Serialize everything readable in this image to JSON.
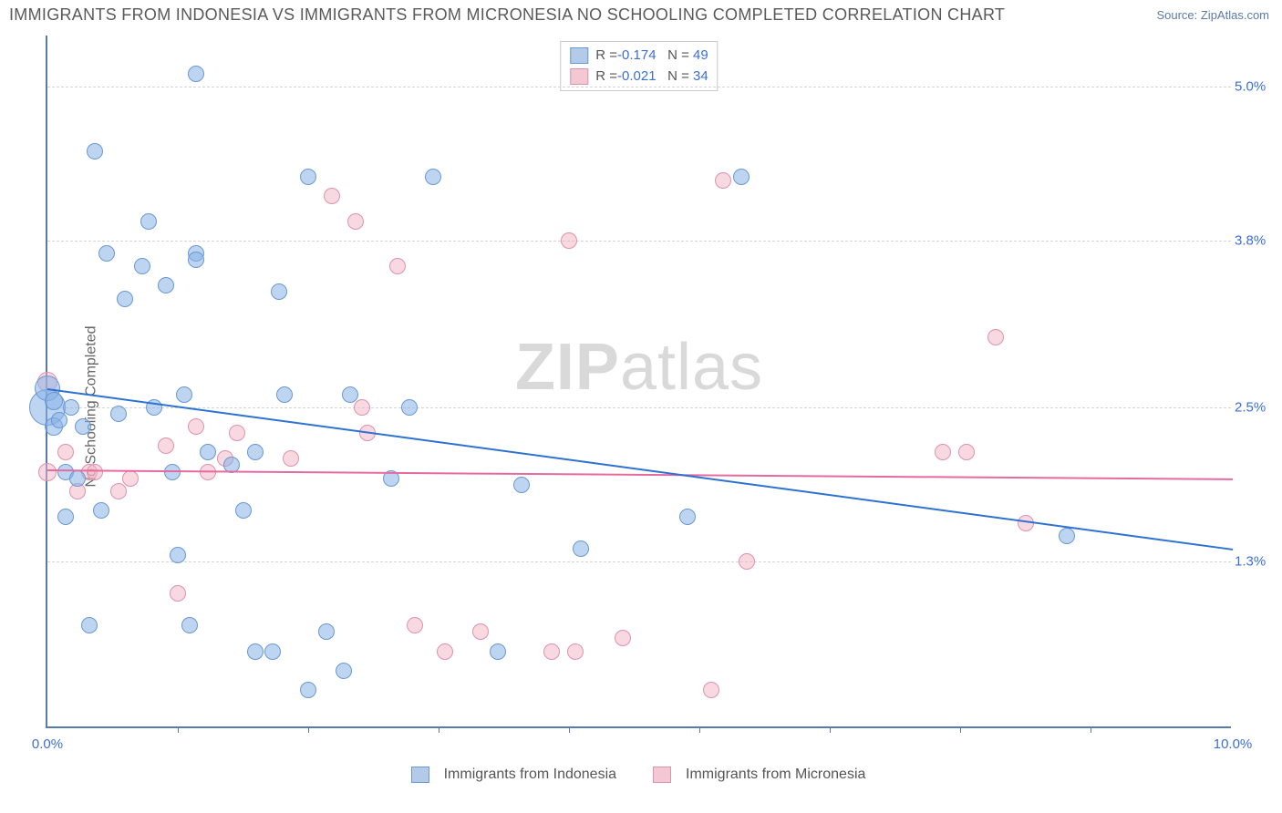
{
  "title": "IMMIGRANTS FROM INDONESIA VS IMMIGRANTS FROM MICRONESIA NO SCHOOLING COMPLETED CORRELATION CHART",
  "source": "Source: ZipAtlas.com",
  "y_axis_label": "No Schooling Completed",
  "watermark_a": "ZIP",
  "watermark_b": "atlas",
  "chart": {
    "type": "scatter",
    "xlim": [
      0,
      10
    ],
    "ylim": [
      0,
      5.4
    ],
    "x_ticks_labeled": [
      {
        "x": 0.0,
        "label": "0.0%"
      },
      {
        "x": 10.0,
        "label": "10.0%"
      }
    ],
    "x_ticks_minor": [
      1.1,
      2.2,
      3.3,
      4.4,
      5.5,
      6.6,
      7.7,
      8.8
    ],
    "y_ticks": [
      {
        "y": 1.3,
        "label": "1.3%"
      },
      {
        "y": 2.5,
        "label": "2.5%"
      },
      {
        "y": 3.8,
        "label": "3.8%"
      },
      {
        "y": 5.0,
        "label": "5.0%"
      }
    ],
    "background_color": "#ffffff",
    "axis_color": "#5a7aaa",
    "grid_color": "#d4d4d4"
  },
  "legend_top": [
    {
      "swatch_fill": "#b3cbe9",
      "swatch_border": "#6a98d2",
      "r_label": "R = ",
      "r_value": "-0.174",
      "n_label": "   N = ",
      "n_value": "49"
    },
    {
      "swatch_fill": "#f4c7d4",
      "swatch_border": "#dd93ab",
      "r_label": "R = ",
      "r_value": "-0.021",
      "n_label": "   N = ",
      "n_value": "34"
    }
  ],
  "legend_bottom": [
    {
      "swatch_fill": "#b3cbe9",
      "swatch_border": "#6a98d2",
      "label": "Immigrants from Indonesia"
    },
    {
      "swatch_fill": "#f4c7d4",
      "swatch_border": "#dd93ab",
      "label": "Immigrants from Micronesia"
    }
  ],
  "series": {
    "indonesia": {
      "color_fill": "rgba(137,178,231,0.55)",
      "color_border": "#6a98d2",
      "trend_color": "#2d72d2",
      "trend": {
        "x1": 0.0,
        "y1": 2.65,
        "x2": 10.0,
        "y2": 1.4
      },
      "points": [
        {
          "x": 0.0,
          "y": 2.5,
          "r": 20
        },
        {
          "x": 0.0,
          "y": 2.65,
          "r": 14
        },
        {
          "x": 0.05,
          "y": 2.55,
          "r": 10
        },
        {
          "x": 0.05,
          "y": 2.35,
          "r": 10
        },
        {
          "x": 0.1,
          "y": 2.4,
          "r": 9
        },
        {
          "x": 0.15,
          "y": 1.65,
          "r": 9
        },
        {
          "x": 0.15,
          "y": 2.0,
          "r": 9
        },
        {
          "x": 0.2,
          "y": 2.5,
          "r": 9
        },
        {
          "x": 0.25,
          "y": 1.95,
          "r": 9
        },
        {
          "x": 0.3,
          "y": 2.35,
          "r": 9
        },
        {
          "x": 0.35,
          "y": 0.8,
          "r": 9
        },
        {
          "x": 0.4,
          "y": 4.5,
          "r": 9
        },
        {
          "x": 0.45,
          "y": 1.7,
          "r": 9
        },
        {
          "x": 0.5,
          "y": 3.7,
          "r": 9
        },
        {
          "x": 0.6,
          "y": 2.45,
          "r": 9
        },
        {
          "x": 0.65,
          "y": 3.35,
          "r": 9
        },
        {
          "x": 0.8,
          "y": 3.6,
          "r": 9
        },
        {
          "x": 0.85,
          "y": 3.95,
          "r": 9
        },
        {
          "x": 0.9,
          "y": 2.5,
          "r": 9
        },
        {
          "x": 1.0,
          "y": 3.45,
          "r": 9
        },
        {
          "x": 1.05,
          "y": 2.0,
          "r": 9
        },
        {
          "x": 1.1,
          "y": 1.35,
          "r": 9
        },
        {
          "x": 1.15,
          "y": 2.6,
          "r": 9
        },
        {
          "x": 1.2,
          "y": 0.8,
          "r": 9
        },
        {
          "x": 1.25,
          "y": 5.1,
          "r": 9
        },
        {
          "x": 1.25,
          "y": 3.7,
          "r": 9
        },
        {
          "x": 1.25,
          "y": 3.65,
          "r": 9
        },
        {
          "x": 1.35,
          "y": 2.15,
          "r": 9
        },
        {
          "x": 1.55,
          "y": 2.05,
          "r": 9
        },
        {
          "x": 1.65,
          "y": 1.7,
          "r": 9
        },
        {
          "x": 1.75,
          "y": 2.15,
          "r": 9
        },
        {
          "x": 1.75,
          "y": 0.6,
          "r": 9
        },
        {
          "x": 1.9,
          "y": 0.6,
          "r": 9
        },
        {
          "x": 1.95,
          "y": 3.4,
          "r": 9
        },
        {
          "x": 2.0,
          "y": 2.6,
          "r": 9
        },
        {
          "x": 2.2,
          "y": 4.3,
          "r": 9
        },
        {
          "x": 2.2,
          "y": 0.3,
          "r": 9
        },
        {
          "x": 2.35,
          "y": 0.75,
          "r": 9
        },
        {
          "x": 2.5,
          "y": 0.45,
          "r": 9
        },
        {
          "x": 2.55,
          "y": 2.6,
          "r": 9
        },
        {
          "x": 2.9,
          "y": 1.95,
          "r": 9
        },
        {
          "x": 3.05,
          "y": 2.5,
          "r": 9
        },
        {
          "x": 3.25,
          "y": 4.3,
          "r": 9
        },
        {
          "x": 3.8,
          "y": 0.6,
          "r": 9
        },
        {
          "x": 4.0,
          "y": 1.9,
          "r": 9
        },
        {
          "x": 4.5,
          "y": 1.4,
          "r": 9
        },
        {
          "x": 5.4,
          "y": 1.65,
          "r": 9
        },
        {
          "x": 5.85,
          "y": 4.3,
          "r": 9
        },
        {
          "x": 8.6,
          "y": 1.5,
          "r": 9
        }
      ]
    },
    "micronesia": {
      "color_fill": "rgba(241,178,196,0.5)",
      "color_border": "#dd93ab",
      "trend_color": "#e66aa0",
      "trend": {
        "x1": 0.0,
        "y1": 2.02,
        "x2": 10.0,
        "y2": 1.95
      },
      "points": [
        {
          "x": 0.0,
          "y": 2.7,
          "r": 11
        },
        {
          "x": 0.0,
          "y": 2.0,
          "r": 10
        },
        {
          "x": 0.15,
          "y": 2.15,
          "r": 9
        },
        {
          "x": 0.25,
          "y": 1.85,
          "r": 9
        },
        {
          "x": 0.35,
          "y": 2.0,
          "r": 9
        },
        {
          "x": 0.4,
          "y": 2.0,
          "r": 9
        },
        {
          "x": 0.6,
          "y": 1.85,
          "r": 9
        },
        {
          "x": 0.7,
          "y": 1.95,
          "r": 9
        },
        {
          "x": 1.0,
          "y": 2.2,
          "r": 9
        },
        {
          "x": 1.1,
          "y": 1.05,
          "r": 9
        },
        {
          "x": 1.25,
          "y": 2.35,
          "r": 9
        },
        {
          "x": 1.35,
          "y": 2.0,
          "r": 9
        },
        {
          "x": 1.5,
          "y": 2.1,
          "r": 9
        },
        {
          "x": 1.6,
          "y": 2.3,
          "r": 9
        },
        {
          "x": 2.05,
          "y": 2.1,
          "r": 9
        },
        {
          "x": 2.4,
          "y": 4.15,
          "r": 9
        },
        {
          "x": 2.6,
          "y": 3.95,
          "r": 9
        },
        {
          "x": 2.65,
          "y": 2.5,
          "r": 9
        },
        {
          "x": 2.7,
          "y": 2.3,
          "r": 9
        },
        {
          "x": 2.95,
          "y": 3.6,
          "r": 9
        },
        {
          "x": 3.1,
          "y": 0.8,
          "r": 9
        },
        {
          "x": 3.35,
          "y": 0.6,
          "r": 9
        },
        {
          "x": 3.65,
          "y": 0.75,
          "r": 9
        },
        {
          "x": 4.25,
          "y": 0.6,
          "r": 9
        },
        {
          "x": 4.4,
          "y": 3.8,
          "r": 9
        },
        {
          "x": 4.45,
          "y": 0.6,
          "r": 9
        },
        {
          "x": 4.85,
          "y": 0.7,
          "r": 9
        },
        {
          "x": 5.6,
          "y": 0.3,
          "r": 9
        },
        {
          "x": 5.7,
          "y": 4.27,
          "r": 9
        },
        {
          "x": 5.9,
          "y": 1.3,
          "r": 9
        },
        {
          "x": 7.55,
          "y": 2.15,
          "r": 9
        },
        {
          "x": 7.75,
          "y": 2.15,
          "r": 9
        },
        {
          "x": 8.0,
          "y": 3.05,
          "r": 9
        },
        {
          "x": 8.25,
          "y": 1.6,
          "r": 9
        }
      ]
    }
  }
}
